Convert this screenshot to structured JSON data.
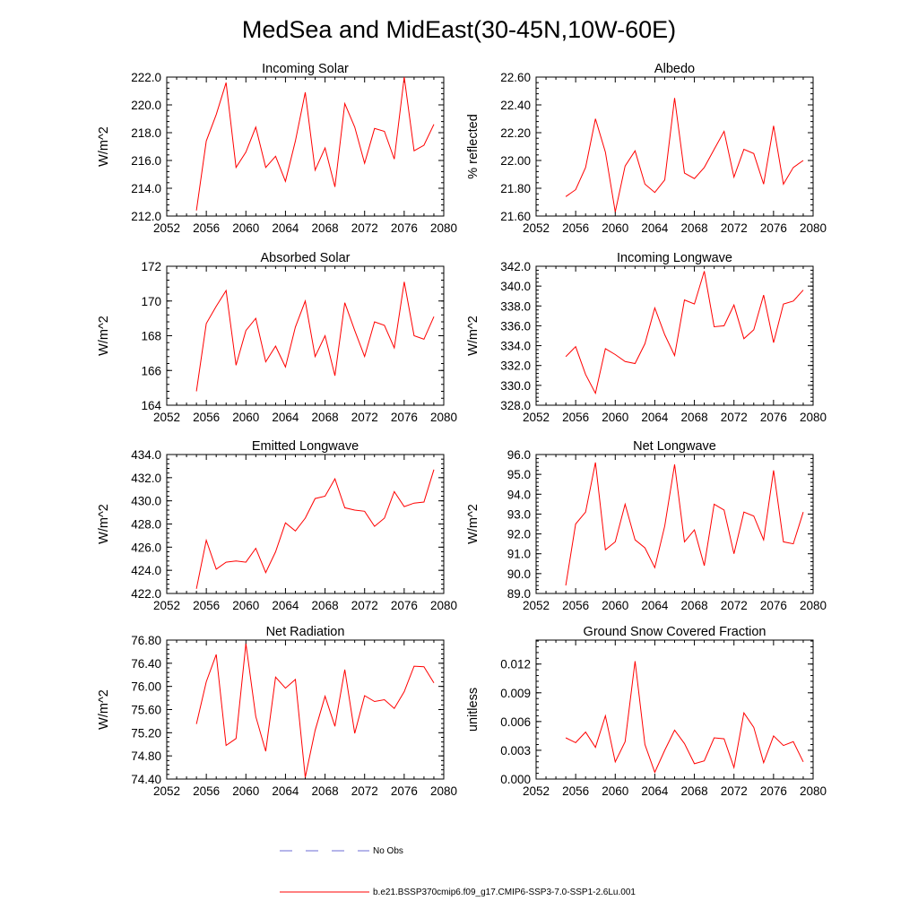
{
  "figure": {
    "title": "MedSea and MidEast(30-45N,10W-60E)",
    "line_color": "#ff0000",
    "obs_color": "#6b6bd6"
  },
  "legend": {
    "obs_label": "No Obs",
    "model_label": "b.e21.BSSP370cmip6.f09_g17.CMIP6-SSP3-7.0-SSP1-2.6Lu.001"
  },
  "chart_data": [
    {
      "type": "line",
      "title": "Incoming Solar",
      "ylabel": "W/m^2",
      "xlim": [
        2052,
        2080
      ],
      "ylim": [
        212,
        222
      ],
      "yticks": [
        212,
        214,
        216,
        218,
        220,
        222
      ],
      "ytick_labels": [
        "212.0",
        "214.0",
        "216.0",
        "218.0",
        "220.0",
        "222.0"
      ],
      "xticks": [
        2052,
        2056,
        2060,
        2064,
        2068,
        2072,
        2076,
        2080
      ],
      "x": [
        2055,
        2056,
        2057,
        2058,
        2059,
        2060,
        2061,
        2062,
        2063,
        2064,
        2065,
        2066,
        2067,
        2068,
        2069,
        2070,
        2071,
        2072,
        2073,
        2074,
        2075,
        2076,
        2077,
        2078,
        2079
      ],
      "y": [
        212.4,
        217.4,
        219.3,
        221.6,
        215.5,
        216.6,
        218.4,
        215.5,
        216.3,
        214.5,
        217.4,
        220.9,
        215.3,
        216.9,
        214.1,
        220.1,
        218.4,
        215.8,
        218.3,
        218.1,
        216.1,
        222.0,
        216.7,
        217.1,
        218.6
      ]
    },
    {
      "type": "line",
      "title": "Albedo",
      "ylabel": "% reflected",
      "xlim": [
        2052,
        2080
      ],
      "ylim": [
        21.6,
        22.6
      ],
      "yticks": [
        21.6,
        21.8,
        22.0,
        22.2,
        22.4,
        22.6
      ],
      "ytick_labels": [
        "21.60",
        "21.80",
        "22.00",
        "22.20",
        "22.40",
        "22.60"
      ],
      "xticks": [
        2052,
        2056,
        2060,
        2064,
        2068,
        2072,
        2076,
        2080
      ],
      "x": [
        2055,
        2056,
        2057,
        2058,
        2059,
        2060,
        2061,
        2062,
        2063,
        2064,
        2065,
        2066,
        2067,
        2068,
        2069,
        2070,
        2071,
        2072,
        2073,
        2074,
        2075,
        2076,
        2077,
        2078,
        2079
      ],
      "y": [
        21.74,
        21.79,
        21.95,
        22.3,
        22.06,
        21.63,
        21.96,
        22.07,
        21.83,
        21.77,
        21.86,
        22.45,
        21.91,
        21.87,
        21.95,
        22.08,
        22.21,
        21.88,
        22.08,
        22.05,
        21.83,
        22.25,
        21.83,
        21.95,
        22.0
      ]
    },
    {
      "type": "line",
      "title": "Absorbed Solar",
      "ylabel": "W/m^2",
      "xlim": [
        2052,
        2080
      ],
      "ylim": [
        164,
        172
      ],
      "yticks": [
        164,
        166,
        168,
        170,
        172
      ],
      "ytick_labels": [
        "164",
        "166",
        "168",
        "170",
        "172"
      ],
      "xticks": [
        2052,
        2056,
        2060,
        2064,
        2068,
        2072,
        2076,
        2080
      ],
      "x": [
        2055,
        2056,
        2057,
        2058,
        2059,
        2060,
        2061,
        2062,
        2063,
        2064,
        2065,
        2066,
        2067,
        2068,
        2069,
        2070,
        2071,
        2072,
        2073,
        2074,
        2075,
        2076,
        2077,
        2078,
        2079
      ],
      "y": [
        164.8,
        168.7,
        169.7,
        170.6,
        166.3,
        168.3,
        169.0,
        166.5,
        167.4,
        166.2,
        168.5,
        170.0,
        166.8,
        168.0,
        165.7,
        169.9,
        168.3,
        166.8,
        168.8,
        168.6,
        167.3,
        171.1,
        168.0,
        167.8,
        169.1
      ]
    },
    {
      "type": "line",
      "title": "Incoming Longwave",
      "ylabel": "W/m^2",
      "xlim": [
        2052,
        2080
      ],
      "ylim": [
        328,
        342
      ],
      "yticks": [
        328,
        330,
        332,
        334,
        336,
        338,
        340,
        342
      ],
      "ytick_labels": [
        "328.0",
        "330.0",
        "332.0",
        "334.0",
        "336.0",
        "338.0",
        "340.0",
        "342.0"
      ],
      "xticks": [
        2052,
        2056,
        2060,
        2064,
        2068,
        2072,
        2076,
        2080
      ],
      "x": [
        2055,
        2056,
        2057,
        2058,
        2059,
        2060,
        2061,
        2062,
        2063,
        2064,
        2065,
        2066,
        2067,
        2068,
        2069,
        2070,
        2071,
        2072,
        2073,
        2074,
        2075,
        2076,
        2077,
        2078,
        2079
      ],
      "y": [
        332.9,
        333.9,
        331.1,
        329.2,
        333.7,
        333.1,
        332.4,
        332.2,
        334.2,
        337.8,
        335.1,
        333.0,
        338.6,
        338.2,
        341.5,
        335.9,
        336.0,
        338.1,
        334.7,
        335.6,
        339.1,
        334.3,
        338.2,
        338.5,
        339.6
      ]
    },
    {
      "type": "line",
      "title": "Emitted Longwave",
      "ylabel": "W/m^2",
      "xlim": [
        2052,
        2080
      ],
      "ylim": [
        422,
        434
      ],
      "yticks": [
        422,
        424,
        426,
        428,
        430,
        432,
        434
      ],
      "ytick_labels": [
        "422.0",
        "424.0",
        "426.0",
        "428.0",
        "430.0",
        "432.0",
        "434.0"
      ],
      "xticks": [
        2052,
        2056,
        2060,
        2064,
        2068,
        2072,
        2076,
        2080
      ],
      "x": [
        2055,
        2056,
        2057,
        2058,
        2059,
        2060,
        2061,
        2062,
        2063,
        2064,
        2065,
        2066,
        2067,
        2068,
        2069,
        2070,
        2071,
        2072,
        2073,
        2074,
        2075,
        2076,
        2077,
        2078,
        2079
      ],
      "y": [
        422.4,
        426.6,
        424.1,
        424.7,
        424.8,
        424.7,
        425.9,
        423.8,
        425.6,
        428.1,
        427.4,
        428.5,
        430.2,
        430.4,
        431.9,
        429.4,
        429.2,
        429.1,
        427.8,
        428.5,
        430.8,
        429.5,
        429.8,
        429.9,
        432.7
      ]
    },
    {
      "type": "line",
      "title": "Net Longwave",
      "ylabel": "W/m^2",
      "xlim": [
        2052,
        2080
      ],
      "ylim": [
        89,
        96
      ],
      "yticks": [
        89,
        90,
        91,
        92,
        93,
        94,
        95,
        96
      ],
      "ytick_labels": [
        "89.0",
        "90.0",
        "91.0",
        "92.0",
        "93.0",
        "94.0",
        "95.0",
        "96.0"
      ],
      "xticks": [
        2052,
        2056,
        2060,
        2064,
        2068,
        2072,
        2076,
        2080
      ],
      "x": [
        2055,
        2056,
        2057,
        2058,
        2059,
        2060,
        2061,
        2062,
        2063,
        2064,
        2065,
        2066,
        2067,
        2068,
        2069,
        2070,
        2071,
        2072,
        2073,
        2074,
        2075,
        2076,
        2077,
        2078,
        2079
      ],
      "y": [
        89.4,
        92.5,
        93.1,
        95.6,
        91.2,
        91.6,
        93.5,
        91.7,
        91.3,
        90.3,
        92.4,
        95.5,
        91.6,
        92.2,
        90.4,
        93.5,
        93.2,
        91.0,
        93.1,
        92.9,
        91.7,
        95.2,
        91.6,
        91.5,
        93.1
      ]
    },
    {
      "type": "line",
      "title": "Net Radiation",
      "ylabel": "W/m^2",
      "xlim": [
        2052,
        2080
      ],
      "ylim": [
        74.4,
        76.8
      ],
      "yticks": [
        74.4,
        74.8,
        75.2,
        75.6,
        76.0,
        76.4,
        76.8
      ],
      "ytick_labels": [
        "74.40",
        "74.80",
        "75.20",
        "75.60",
        "76.00",
        "76.40",
        "76.80"
      ],
      "xticks": [
        2052,
        2056,
        2060,
        2064,
        2068,
        2072,
        2076,
        2080
      ],
      "x": [
        2055,
        2056,
        2057,
        2058,
        2059,
        2060,
        2061,
        2062,
        2063,
        2064,
        2065,
        2066,
        2067,
        2068,
        2069,
        2070,
        2071,
        2072,
        2073,
        2074,
        2075,
        2076,
        2077,
        2078,
        2079
      ],
      "y": [
        75.35,
        76.08,
        76.55,
        74.98,
        75.1,
        76.74,
        75.48,
        74.88,
        76.16,
        75.97,
        76.12,
        74.43,
        75.24,
        75.83,
        75.31,
        76.29,
        75.19,
        75.84,
        75.74,
        75.77,
        75.62,
        75.91,
        76.35,
        76.34,
        76.06
      ]
    },
    {
      "type": "line",
      "title": "Ground Snow Covered Fraction",
      "ylabel": "unitless",
      "xlim": [
        2052,
        2080
      ],
      "ylim": [
        0,
        0.0145
      ],
      "yticks": [
        0,
        0.003,
        0.006,
        0.009,
        0.012
      ],
      "ytick_labels": [
        "0.000",
        "0.003",
        "0.006",
        "0.009",
        "0.012"
      ],
      "xticks": [
        2052,
        2056,
        2060,
        2064,
        2068,
        2072,
        2076,
        2080
      ],
      "x": [
        2055,
        2056,
        2057,
        2058,
        2059,
        2060,
        2061,
        2062,
        2063,
        2064,
        2065,
        2066,
        2067,
        2068,
        2069,
        2070,
        2071,
        2072,
        2073,
        2074,
        2075,
        2076,
        2077,
        2078,
        2079
      ],
      "y": [
        0.0043,
        0.0038,
        0.0049,
        0.0033,
        0.0066,
        0.0018,
        0.0039,
        0.0123,
        0.0036,
        0.0007,
        0.003,
        0.0051,
        0.0037,
        0.0016,
        0.0019,
        0.0043,
        0.0042,
        0.0012,
        0.0069,
        0.0054,
        0.0017,
        0.0045,
        0.0035,
        0.0039,
        0.0018
      ]
    }
  ]
}
